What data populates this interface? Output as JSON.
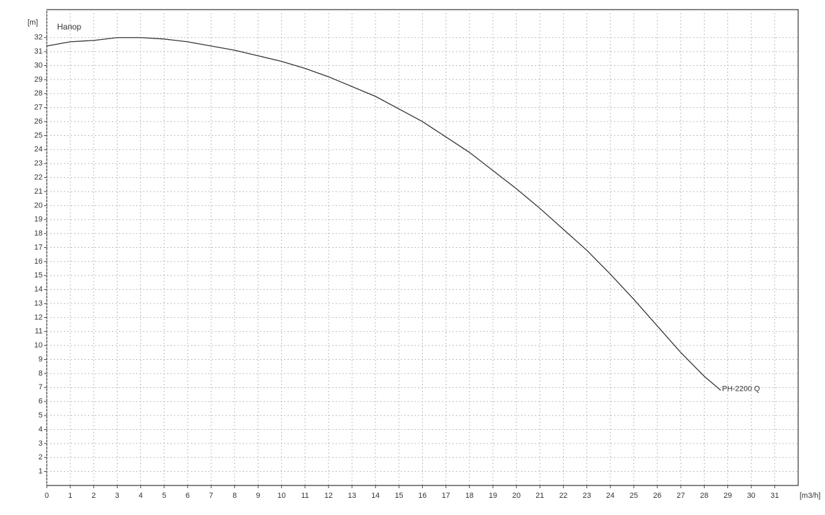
{
  "chart_data": {
    "type": "line",
    "title": "Напор",
    "x_label": "[m3/h]",
    "y_label": "[m]",
    "x": [
      0,
      1,
      2,
      3,
      4,
      5,
      6,
      7,
      8,
      9,
      10,
      11,
      12,
      13,
      14,
      15,
      16,
      17,
      18,
      19,
      20,
      21,
      22,
      23,
      24,
      25,
      26,
      27,
      28,
      28.7
    ],
    "series": [
      {
        "name": "PH-2200 Q",
        "color": "#333333",
        "values": [
          31.4,
          31.7,
          31.8,
          32.0,
          32.0,
          31.9,
          31.7,
          31.4,
          31.1,
          30.7,
          30.3,
          29.8,
          29.2,
          28.5,
          27.8,
          26.9,
          26.0,
          24.9,
          23.8,
          22.5,
          21.2,
          19.8,
          18.3,
          16.8,
          15.1,
          13.3,
          11.4,
          9.5,
          7.8,
          6.8
        ]
      }
    ],
    "xlim": [
      0,
      32
    ],
    "ylim": [
      0,
      34
    ],
    "xticks": [
      0,
      1,
      2,
      3,
      4,
      5,
      6,
      7,
      8,
      9,
      10,
      11,
      12,
      13,
      14,
      15,
      16,
      17,
      18,
      19,
      20,
      21,
      22,
      23,
      24,
      25,
      26,
      27,
      28,
      29,
      30,
      31
    ],
    "yticks": [
      1,
      2,
      3,
      4,
      5,
      6,
      7,
      8,
      9,
      10,
      11,
      12,
      13,
      14,
      15,
      16,
      17,
      18,
      19,
      20,
      21,
      22,
      23,
      24,
      25,
      26,
      27,
      28,
      29,
      30,
      31,
      32
    ],
    "grid": true
  }
}
